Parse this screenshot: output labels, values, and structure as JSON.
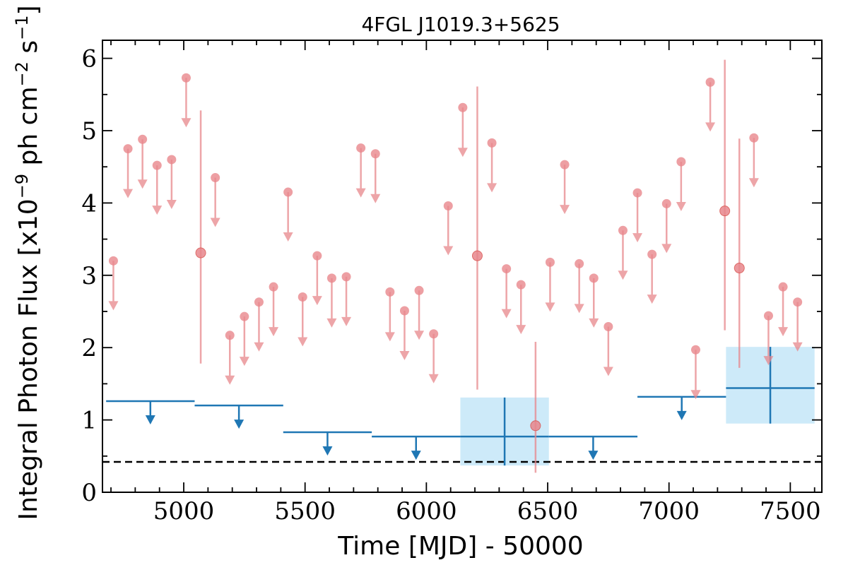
{
  "chart_data": {
    "type": "scatter",
    "title": "4FGL J1019.3+5625",
    "xlabel": "Time [MJD] - 50000",
    "ylabel": "Integral Photon Flux [x10",
    "ylabel_exp1": "−9",
    "ylabel_mid": " ph cm",
    "ylabel_exp2": "−2",
    "ylabel_end": " s",
    "ylabel_exp3": "−1",
    "ylabel_close": "]",
    "xlim": [
      4665,
      7630
    ],
    "ylim": [
      0,
      6.25
    ],
    "xticks": [
      5000,
      5500,
      6000,
      6500,
      7000,
      7500
    ],
    "xtick_labels": [
      "5000",
      "5500",
      "6000",
      "6500",
      "7000",
      "7500"
    ],
    "yticks": [
      0,
      1,
      2,
      3,
      4,
      5,
      6
    ],
    "ytick_labels": [
      "0",
      "1",
      "2",
      "3",
      "4",
      "5",
      "6"
    ],
    "colors": {
      "short": "#e8878c",
      "long": "#1f77b4",
      "band": "#cdeaf9",
      "baseline": "#000000"
    },
    "baseline": 0.42,
    "short_bins": {
      "upper_limits": [
        [
          4710,
          3.2
        ],
        [
          4770,
          4.75
        ],
        [
          4830,
          4.88
        ],
        [
          4890,
          4.52
        ],
        [
          4950,
          4.6
        ],
        [
          5010,
          5.73
        ],
        [
          5130,
          4.35
        ],
        [
          5190,
          2.17
        ],
        [
          5250,
          2.43
        ],
        [
          5310,
          2.63
        ],
        [
          5370,
          2.84
        ],
        [
          5430,
          4.15
        ],
        [
          5490,
          2.7
        ],
        [
          5550,
          3.27
        ],
        [
          5610,
          2.96
        ],
        [
          5670,
          2.98
        ],
        [
          5730,
          4.76
        ],
        [
          5790,
          4.68
        ],
        [
          5850,
          2.77
        ],
        [
          5910,
          2.51
        ],
        [
          5970,
          2.79
        ],
        [
          6030,
          2.19
        ],
        [
          6090,
          3.96
        ],
        [
          6150,
          5.32
        ],
        [
          6270,
          4.83
        ],
        [
          6330,
          3.09
        ],
        [
          6390,
          2.87
        ],
        [
          6510,
          3.18
        ],
        [
          6570,
          4.53
        ],
        [
          6630,
          3.16
        ],
        [
          6690,
          2.96
        ],
        [
          6750,
          2.29
        ],
        [
          6810,
          3.62
        ],
        [
          6870,
          4.14
        ],
        [
          6930,
          3.29
        ],
        [
          6990,
          3.99
        ],
        [
          7050,
          4.57
        ],
        [
          7110,
          1.97
        ],
        [
          7170,
          5.67
        ],
        [
          7350,
          4.9
        ],
        [
          7410,
          2.44
        ],
        [
          7470,
          2.84
        ],
        [
          7530,
          2.63
        ]
      ],
      "detections": [
        {
          "x": 5070,
          "y": 3.31,
          "ylo": 1.78,
          "yhi": 5.28
        },
        {
          "x": 6210,
          "y": 3.27,
          "ylo": 1.42,
          "yhi": 5.61
        },
        {
          "x": 6450,
          "y": 0.92,
          "ylo": 0.27,
          "yhi": 2.08
        },
        {
          "x": 7230,
          "y": 3.89,
          "ylo": 2.24,
          "yhi": 5.98
        },
        {
          "x": 7290,
          "y": 3.1,
          "ylo": 1.72,
          "yhi": 4.89
        }
      ]
    },
    "long_bins": {
      "upper_limits": [
        {
          "xmin": 4680,
          "xmax": 5045,
          "y": 1.26
        },
        {
          "xmin": 5045,
          "xmax": 5410,
          "y": 1.2
        },
        {
          "xmin": 5410,
          "xmax": 5775,
          "y": 0.83
        },
        {
          "xmin": 5775,
          "xmax": 6140,
          "y": 0.77
        },
        {
          "xmin": 6505,
          "xmax": 6870,
          "y": 0.77
        },
        {
          "xmin": 6870,
          "xmax": 7235,
          "y": 1.32
        }
      ],
      "detections": [
        {
          "xmin": 6140,
          "xmax": 6505,
          "y": 0.77,
          "ylo": 0.37,
          "yhi": 1.31
        },
        {
          "xmin": 7235,
          "xmax": 7600,
          "y": 1.44,
          "ylo": 0.95,
          "yhi": 2.01
        }
      ]
    }
  }
}
